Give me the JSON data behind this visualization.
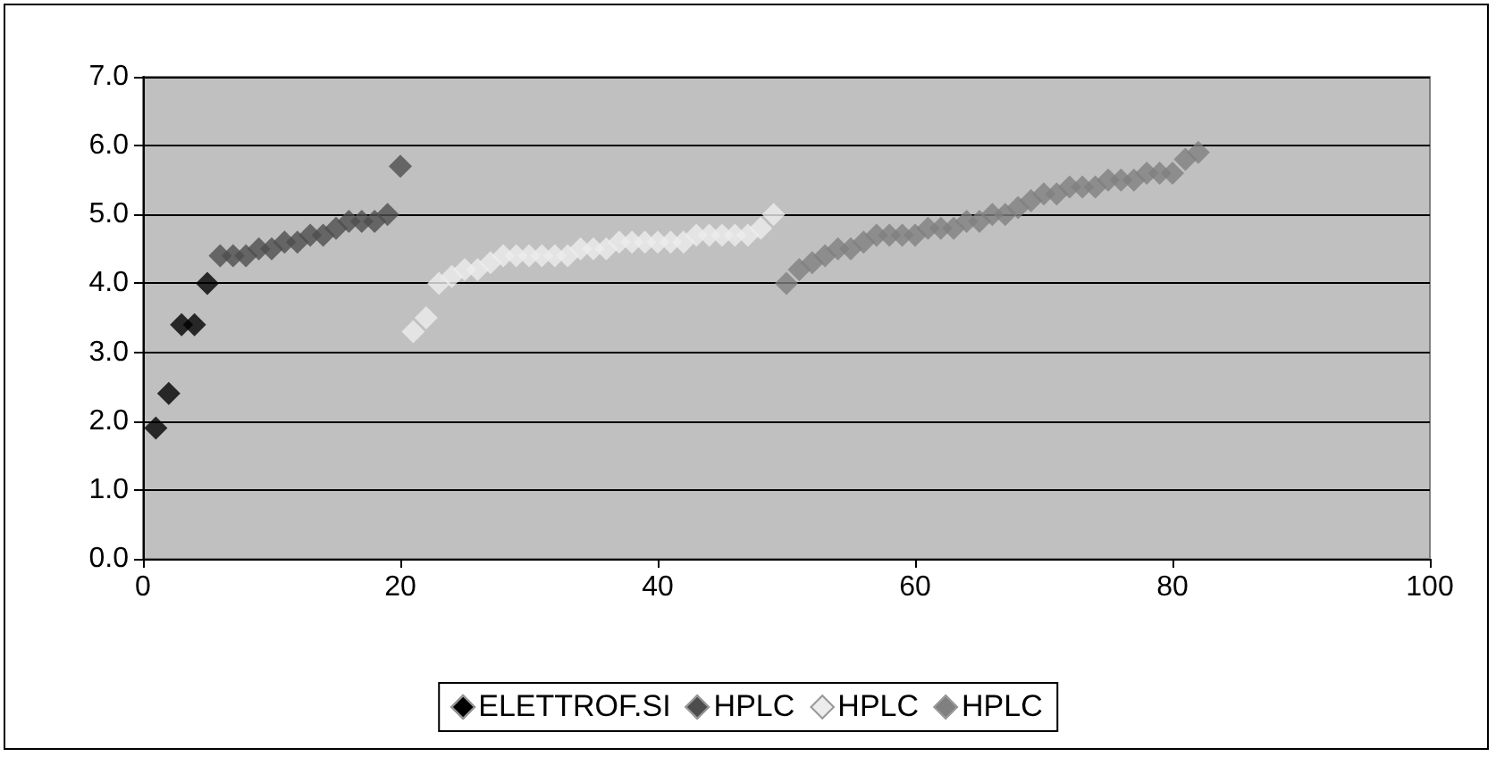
{
  "chart_data": {
    "type": "scatter",
    "marker": "diamond",
    "grid": "y",
    "legend": "bottom",
    "xlim": [
      0,
      100
    ],
    "xticks": [
      0,
      20,
      40,
      60,
      80,
      100
    ],
    "ylim": [
      0,
      7
    ],
    "yticks": [
      {
        "value": 0,
        "label": "0.0"
      },
      {
        "value": 1,
        "label": "1.0"
      },
      {
        "value": 2,
        "label": "2.0"
      },
      {
        "value": 3,
        "label": "3.0"
      },
      {
        "value": 4,
        "label": "4.0"
      },
      {
        "value": 5,
        "label": "5.0"
      },
      {
        "value": 6,
        "label": "6.0"
      },
      {
        "value": 7,
        "label": "7.0"
      }
    ],
    "series": [
      {
        "name": "ELETTROF.SI",
        "color": "#000000",
        "x": [
          1,
          2,
          3,
          4,
          5
        ],
        "values": [
          1.9,
          2.4,
          3.4,
          3.4,
          4.0
        ]
      },
      {
        "name": "HPLC",
        "color": "#4d4d4d",
        "x": [
          6,
          7,
          8,
          9,
          10,
          11,
          12,
          13,
          14,
          15,
          16,
          17,
          18,
          19,
          20
        ],
        "values": [
          4.4,
          4.4,
          4.4,
          4.5,
          4.5,
          4.6,
          4.6,
          4.7,
          4.7,
          4.8,
          4.9,
          4.9,
          4.9,
          5.0,
          5.7
        ]
      },
      {
        "name": "HPLC",
        "color": "#ececec",
        "x": [
          21,
          22,
          23,
          24,
          25,
          26,
          27,
          28,
          29,
          30,
          31,
          32,
          33,
          34,
          35,
          36,
          37,
          38,
          39,
          40,
          41,
          42,
          43,
          44,
          45,
          46,
          47,
          48,
          49
        ],
        "values": [
          3.3,
          3.5,
          4.0,
          4.1,
          4.2,
          4.2,
          4.3,
          4.4,
          4.4,
          4.4,
          4.4,
          4.4,
          4.4,
          4.5,
          4.5,
          4.5,
          4.6,
          4.6,
          4.6,
          4.6,
          4.6,
          4.6,
          4.7,
          4.7,
          4.7,
          4.7,
          4.7,
          4.8,
          5.0
        ]
      },
      {
        "name": "HPLC",
        "color": "#808080",
        "x": [
          50,
          51,
          52,
          53,
          54,
          55,
          56,
          57,
          58,
          59,
          60,
          61,
          62,
          63,
          64,
          65,
          66,
          67,
          68,
          69,
          70,
          71,
          72,
          73,
          74,
          75,
          76,
          77,
          78,
          79,
          80,
          81,
          82
        ],
        "values": [
          4.0,
          4.2,
          4.3,
          4.4,
          4.5,
          4.5,
          4.6,
          4.7,
          4.7,
          4.7,
          4.7,
          4.8,
          4.8,
          4.8,
          4.9,
          4.9,
          5.0,
          5.0,
          5.1,
          5.2,
          5.3,
          5.3,
          5.4,
          5.4,
          5.4,
          5.5,
          5.5,
          5.5,
          5.6,
          5.6,
          5.6,
          5.8,
          5.9
        ]
      }
    ]
  }
}
